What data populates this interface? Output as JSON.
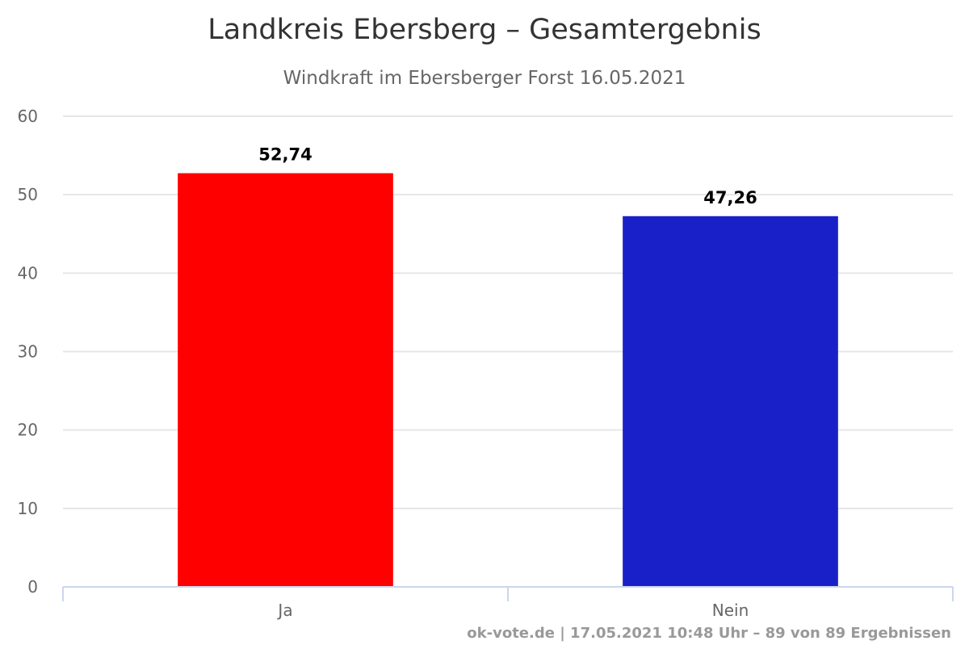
{
  "chart_data": {
    "type": "bar",
    "title": "Landkreis Ebersberg – Gesamtergebnis",
    "subtitle": "Windkraft im Ebersberger Forst 16.05.2021",
    "categories": [
      "Ja",
      "Nein"
    ],
    "values": [
      52.74,
      47.26
    ],
    "data_labels": [
      "52,74",
      "47,26"
    ],
    "colors": [
      "#ff0000",
      "#1a20c8"
    ],
    "ylim": [
      0,
      60
    ],
    "yticks": [
      0,
      10,
      20,
      30,
      40,
      50,
      60
    ],
    "xlabel": "",
    "ylabel": "",
    "grid": true,
    "legend": "none"
  },
  "credits": "ok-vote.de | 17.05.2021 10:48 Uhr – 89 von 89 Ergebnissen"
}
